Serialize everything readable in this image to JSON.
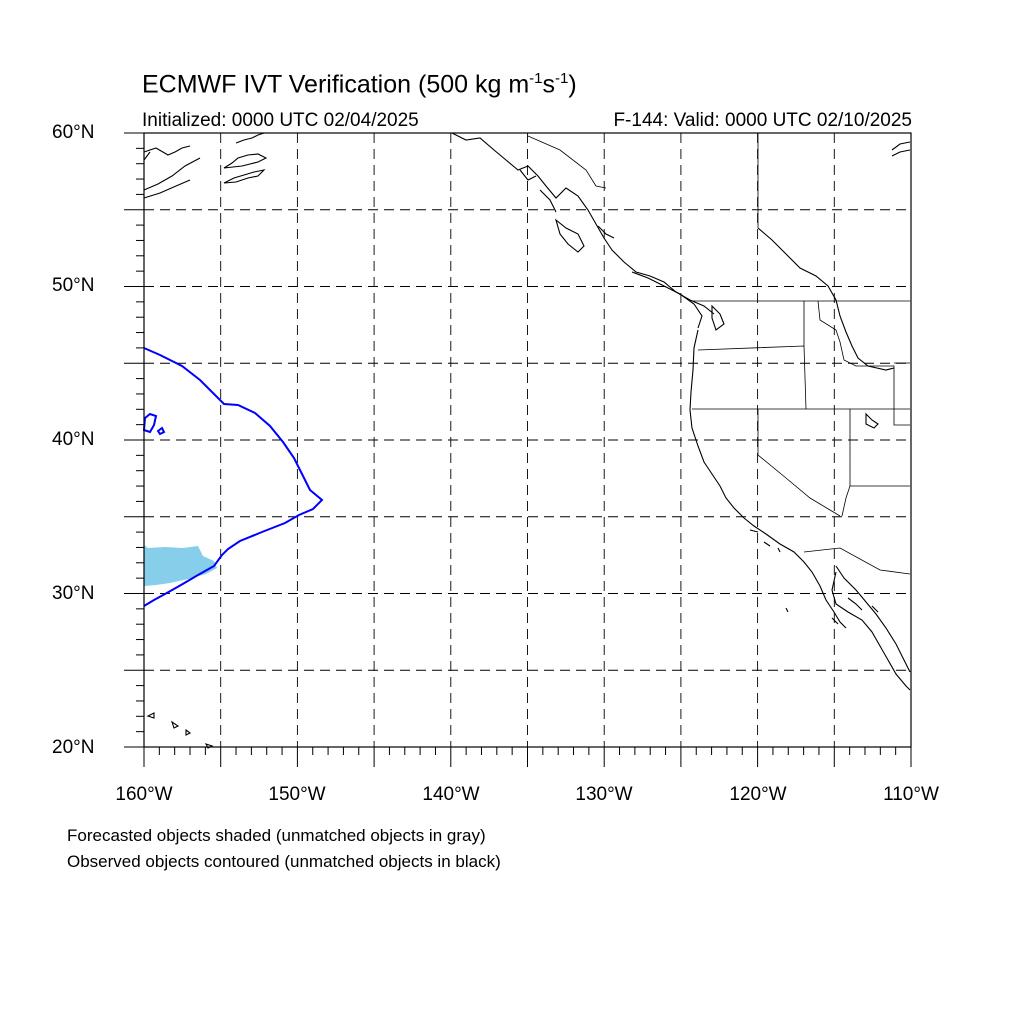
{
  "title": {
    "main": "ECMWF IVT Verification (500 kg m",
    "exp1": "-1",
    "mid": "s",
    "exp2": "-1",
    "end": ")"
  },
  "subtitle": {
    "initialized": "Initialized: 0000 UTC 02/04/2025",
    "valid": "F-144: Valid: 0000 UTC 02/10/2025"
  },
  "map": {
    "lon_range": [
      -160,
      -110
    ],
    "lat_range": [
      20,
      60
    ],
    "grid": "dashed, every 5 degrees",
    "lat_labels": [
      "60°N",
      "50°N",
      "40°N",
      "30°N",
      "20°N"
    ],
    "lon_labels": [
      "160°W",
      "150°W",
      "140°W",
      "130°W",
      "120°W",
      "110°W"
    ],
    "forecast_color": "#87CEEB",
    "observed_color": "#0000FF",
    "coast_color": "#000000"
  },
  "notes": {
    "forecast": "Forecasted objects shaded (unmatched objects in gray)",
    "observed": "Observed objects contoured (unmatched objects in black)"
  }
}
